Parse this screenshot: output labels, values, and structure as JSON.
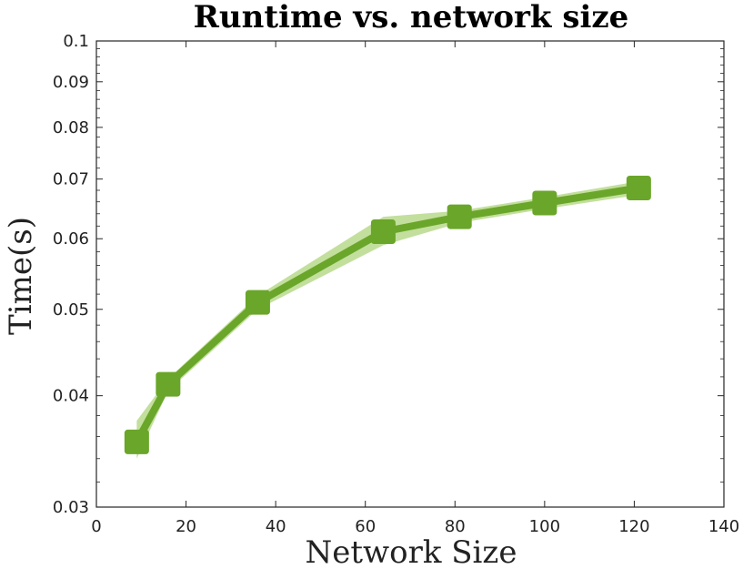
{
  "chart_data": {
    "type": "line",
    "title": "Runtime vs. network size",
    "xlabel": "Network Size",
    "ylabel": "Time(s)",
    "xlim": [
      0,
      140
    ],
    "ylim": [
      0.03,
      0.1
    ],
    "yscale": "log",
    "grid": false,
    "x_ticks": [
      0,
      20,
      40,
      60,
      80,
      100,
      120,
      140
    ],
    "x_tick_labels": [
      "0",
      "20",
      "40",
      "60",
      "80",
      "100",
      "120",
      "140"
    ],
    "y_ticks": [
      0.03,
      0.04,
      0.05,
      0.06,
      0.07,
      0.08,
      0.09,
      0.1
    ],
    "y_tick_labels": [
      "0.03",
      "0.04",
      "0.05",
      "0.06",
      "0.07",
      "0.08",
      "0.09",
      "0.1"
    ],
    "series": [
      {
        "color": "#6aa62a",
        "band_color": "#b8d98c",
        "marker": "square",
        "x": [
          9,
          16,
          36,
          64,
          81,
          100,
          121
        ],
        "y": [
          0.0355,
          0.0412,
          0.0509,
          0.0611,
          0.0635,
          0.0658,
          0.0684
        ],
        "lower": [
          0.034,
          0.0405,
          0.05,
          0.059,
          0.0625,
          0.0648,
          0.0672
        ],
        "upper": [
          0.0375,
          0.0418,
          0.0518,
          0.0635,
          0.0645,
          0.0668,
          0.0696
        ]
      }
    ]
  }
}
